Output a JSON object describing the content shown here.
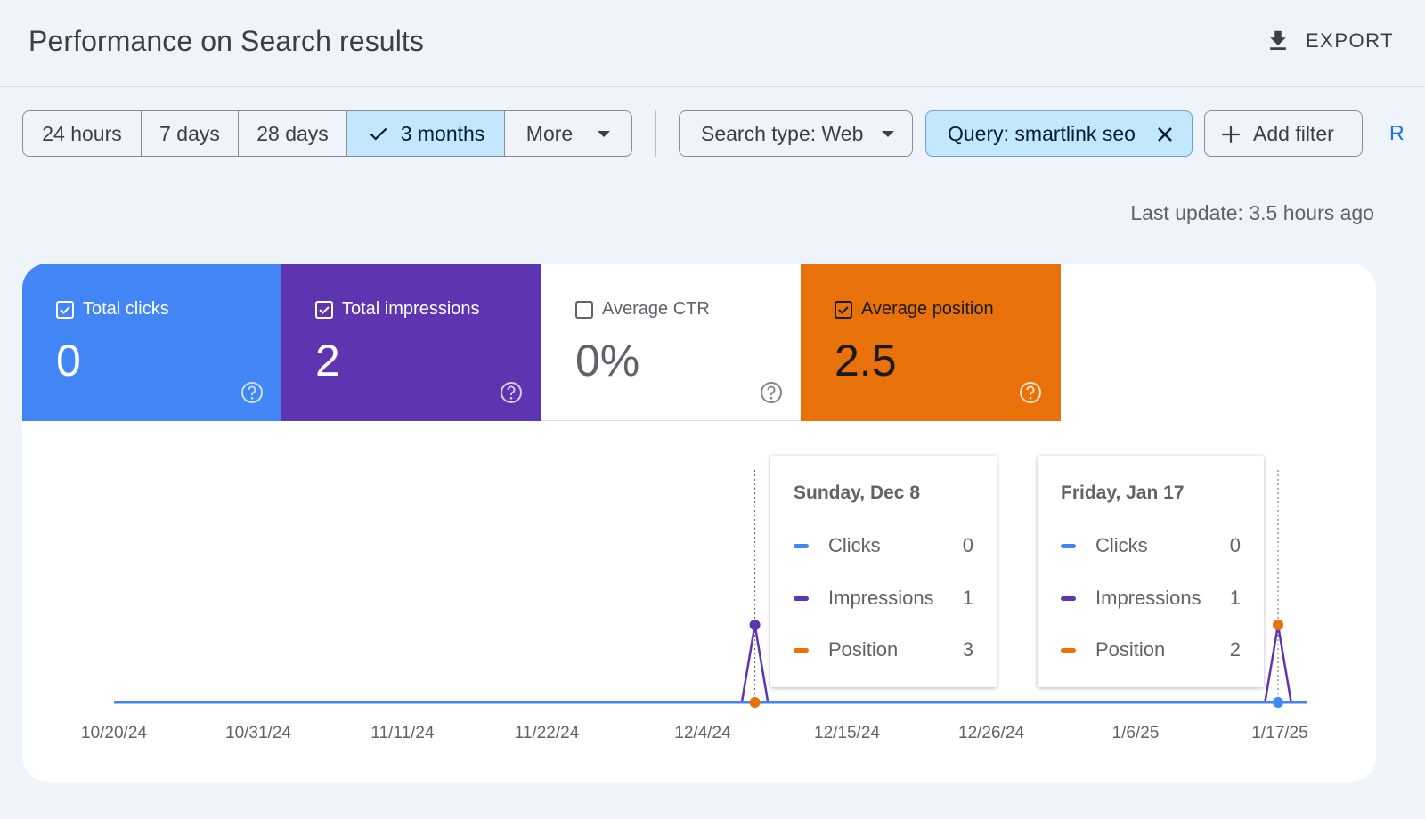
{
  "header": {
    "title": "Performance on Search results",
    "export_label": "EXPORT"
  },
  "date_range": {
    "options": [
      {
        "label": "24 hours",
        "active": false
      },
      {
        "label": "7 days",
        "active": false
      },
      {
        "label": "28 days",
        "active": false
      },
      {
        "label": "3 months",
        "active": true
      },
      {
        "label": "More",
        "active": false
      }
    ]
  },
  "filters": {
    "search_type": "Search type: Web",
    "query": "Query: smartlink seo",
    "add_filter": "Add filter",
    "cut_link": "R"
  },
  "last_update": "Last update: 3.5 hours ago",
  "metrics": {
    "clicks": {
      "label": "Total clicks",
      "value": "0",
      "checked": true
    },
    "impressions": {
      "label": "Total impressions",
      "value": "2",
      "checked": true
    },
    "ctr": {
      "label": "Average CTR",
      "value": "0%",
      "checked": false
    },
    "position": {
      "label": "Average position",
      "value": "2.5",
      "checked": true
    }
  },
  "colors": {
    "clicks": "#4285f4",
    "impressions": "#5e35b1",
    "position": "#e8710a",
    "ctr": "#5f6368"
  },
  "tooltips": [
    {
      "date": "Sunday, Dec 8",
      "rows": [
        {
          "label": "Clicks",
          "value": "0"
        },
        {
          "label": "Impressions",
          "value": "1"
        },
        {
          "label": "Position",
          "value": "3"
        }
      ]
    },
    {
      "date": "Friday, Jan 17",
      "rows": [
        {
          "label": "Clicks",
          "value": "0"
        },
        {
          "label": "Impressions",
          "value": "1"
        },
        {
          "label": "Position",
          "value": "2"
        }
      ]
    }
  ],
  "chart_data": {
    "type": "line",
    "title": "",
    "xlabel": "",
    "ylabel": "",
    "x_tick_labels": [
      "10/20/24",
      "10/31/24",
      "11/11/24",
      "11/22/24",
      "12/4/24",
      "12/15/24",
      "12/26/24",
      "1/6/25",
      "1/17/25"
    ],
    "x_range": [
      "10/20/24",
      "1/18/25"
    ],
    "day_count": 91,
    "series": [
      {
        "name": "Clicks",
        "key": "clicks",
        "points": [
          {
            "day": 49,
            "value": 0
          },
          {
            "day": 89,
            "value": 0
          }
        ]
      },
      {
        "name": "Impressions",
        "key": "impressions",
        "points": [
          {
            "day": 49,
            "value": 1
          },
          {
            "day": 89,
            "value": 1
          }
        ]
      },
      {
        "name": "Position",
        "key": "position",
        "points": [
          {
            "day": 49,
            "value": 3
          },
          {
            "day": 89,
            "value": 2
          }
        ]
      }
    ]
  }
}
